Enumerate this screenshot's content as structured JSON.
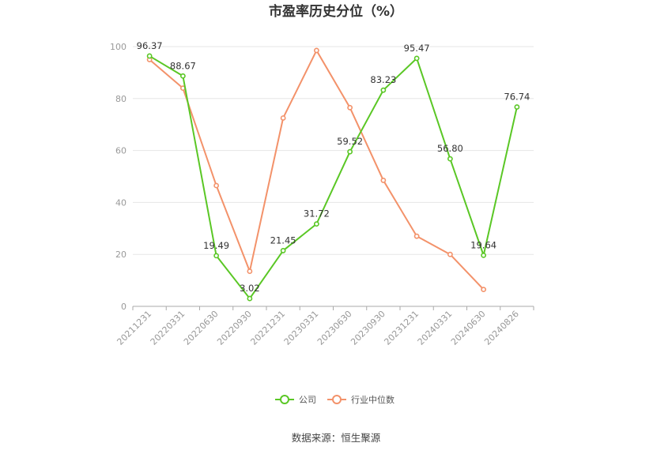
{
  "chart_data": {
    "type": "line",
    "title": "市盈率历史分位（%）",
    "categories": [
      "20211231",
      "20220331",
      "20220630",
      "20220930",
      "20221231",
      "20230331",
      "20230630",
      "20230930",
      "20231231",
      "20240331",
      "20240630",
      "20240826"
    ],
    "series": [
      {
        "name": "公司",
        "color": "#5ac725",
        "values": [
          96.37,
          88.67,
          19.49,
          3.02,
          21.45,
          31.72,
          59.52,
          83.23,
          95.47,
          56.8,
          19.64,
          76.74
        ],
        "labels": [
          "96.37",
          "88.67",
          "19.49",
          "3.02",
          "21.45",
          "31.72",
          "59.52",
          "83.23",
          "95.47",
          "56.80",
          "19.64",
          "76.74"
        ]
      },
      {
        "name": "行业中位数",
        "color": "#f3926a",
        "values": [
          95,
          84,
          46.5,
          13.5,
          72.5,
          98.5,
          76.5,
          48.5,
          27,
          20,
          6.5,
          null
        ]
      }
    ],
    "ylim": [
      0,
      100
    ],
    "yticks": [
      "0",
      "20",
      "40",
      "60",
      "80",
      "100"
    ],
    "grid": true,
    "legend_position": "bottom"
  },
  "source": "数据来源：恒生聚源"
}
